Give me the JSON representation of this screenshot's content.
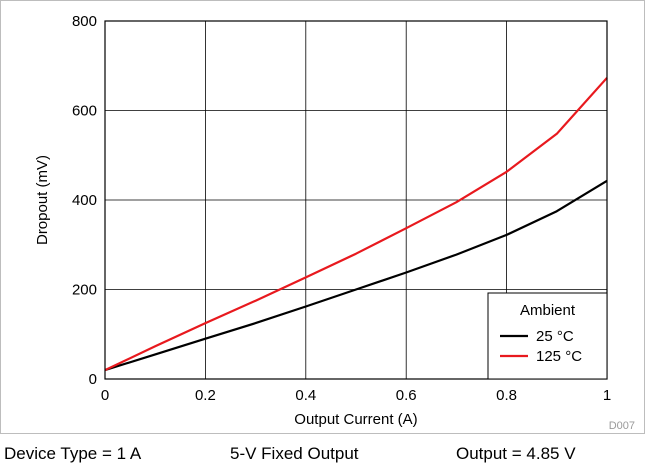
{
  "chart_data": {
    "type": "line",
    "xlabel": "Output Current (A)",
    "ylabel": "Dropout (mV)",
    "xlim": [
      0,
      1
    ],
    "ylim": [
      0,
      800
    ],
    "x_ticks": [
      "0",
      "0.2",
      "0.4",
      "0.6",
      "0.8",
      "1"
    ],
    "y_ticks": [
      "0",
      "200",
      "400",
      "600",
      "800"
    ],
    "grid": true,
    "legend": {
      "title": "Ambient",
      "placement": "bottom-right"
    },
    "series": [
      {
        "name": "25 °C",
        "color": "#000000",
        "x": [
          0,
          0.1,
          0.2,
          0.3,
          0.4,
          0.5,
          0.6,
          0.7,
          0.8,
          0.9,
          1.0
        ],
        "y": [
          20,
          55,
          90,
          125,
          162,
          200,
          238,
          278,
          322,
          375,
          443
        ]
      },
      {
        "name": "125 °C",
        "color": "#e8191e",
        "x": [
          0,
          0.1,
          0.2,
          0.3,
          0.4,
          0.5,
          0.6,
          0.7,
          0.8,
          0.9,
          1.0
        ],
        "y": [
          20,
          73,
          125,
          175,
          227,
          280,
          337,
          395,
          463,
          548,
          673
        ]
      }
    ],
    "figure_code": "D007"
  },
  "caption": {
    "device_type": "Device Type = 1 A",
    "output_kind": "5-V Fixed Output",
    "output_value": "Output = 4.85 V"
  }
}
